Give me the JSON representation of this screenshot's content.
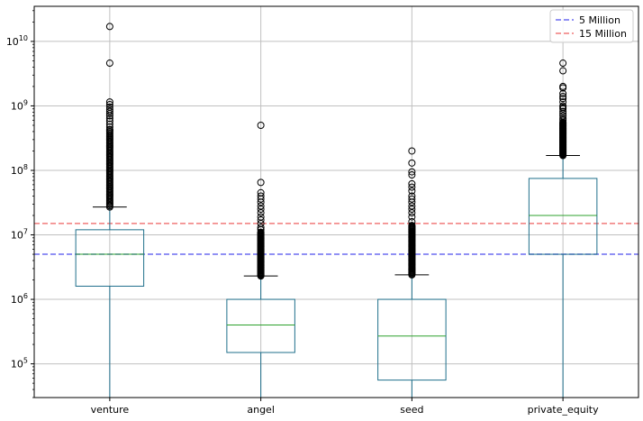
{
  "chart_data": {
    "type": "box",
    "title": "",
    "xlabel": "",
    "ylabel": "",
    "yscale": "log",
    "ylim": [
      30000,
      35000000000
    ],
    "grid": true,
    "legend_position": "top-right",
    "categories": [
      "venture",
      "angel",
      "seed",
      "private_equity"
    ],
    "boxes": [
      {
        "category": "venture",
        "whisker_low": 30000,
        "q1": 1600000,
        "median": 5000000,
        "q3": 12000000,
        "whisker_high": 27000000,
        "outlier_band": [
          27000000,
          420000000
        ],
        "outliers": [
          17000000000,
          4600000000,
          1150000000,
          1050000000,
          960000000,
          880000000,
          820000000,
          760000000,
          700000000,
          640000000,
          580000000,
          520000000,
          470000000,
          430000000
        ]
      },
      {
        "category": "angel",
        "whisker_low": 30000,
        "q1": 150000,
        "median": 400000,
        "q3": 1000000,
        "whisker_high": 2300000,
        "outlier_band": [
          2300000,
          11000000
        ],
        "outliers": [
          500000000,
          65000000,
          45000000,
          40000000,
          36000000,
          32000000,
          28000000,
          25000000,
          22000000,
          19000000,
          17000000,
          15000000,
          13000000,
          12000000
        ]
      },
      {
        "category": "seed",
        "whisker_low": 30000,
        "q1": 56000,
        "median": 270000,
        "q3": 1000000,
        "whisker_high": 2400000,
        "outlier_band": [
          2400000,
          14000000
        ],
        "outliers": [
          200000000,
          130000000,
          95000000,
          85000000,
          62000000,
          55000000,
          48000000,
          40000000,
          36000000,
          32000000,
          28000000,
          25000000,
          22000000,
          19000000,
          16000000
        ]
      },
      {
        "category": "private_equity",
        "whisker_low": 30000,
        "q1": 5000000,
        "median": 20000000,
        "q3": 75000000,
        "whisker_high": 170000000,
        "outlier_band": [
          170000000,
          560000000
        ],
        "outliers": [
          4600000000,
          3500000000,
          2000000000,
          1900000000,
          1550000000,
          1400000000,
          1300000000,
          1150000000,
          1000000000,
          950000000,
          900000000,
          820000000,
          760000000,
          700000000,
          640000000,
          600000000
        ]
      }
    ],
    "reference_lines": [
      {
        "name": "5 Million",
        "value": 5000000,
        "color": "#6b6bf0"
      },
      {
        "name": "15 Million",
        "value": 15000000,
        "color": "#f07a7a"
      }
    ],
    "y_ticks": [
      {
        "value": 100000,
        "base": "10",
        "exp": "5"
      },
      {
        "value": 1000000,
        "base": "10",
        "exp": "6"
      },
      {
        "value": 10000000,
        "base": "10",
        "exp": "7"
      },
      {
        "value": 100000000,
        "base": "10",
        "exp": "8"
      },
      {
        "value": 1000000000,
        "base": "10",
        "exp": "9"
      },
      {
        "value": 10000000000,
        "base": "10",
        "exp": "10"
      }
    ],
    "colors": {
      "box": "#1f6f8b",
      "median": "#2ca02c",
      "whisker": "#1f6f8b",
      "cap": "#000000",
      "outlier": "#000000",
      "grid": "#c0c0c0"
    }
  }
}
